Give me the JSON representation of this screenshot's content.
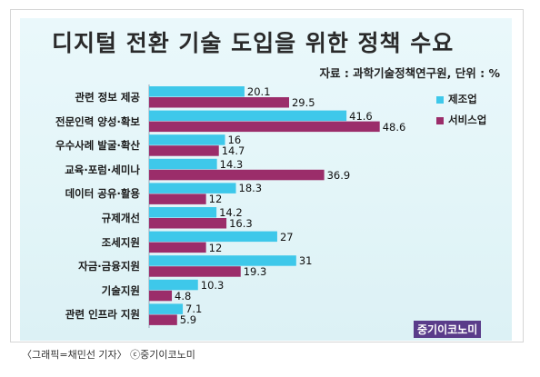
{
  "title": "디지털 전환 기술 도입을 위한 정책 수요",
  "source": "자료 : 과학기술정책연구원, 단위 : %",
  "caption": "〈그래픽=채민선 기자〉  ⓒ중기이코노미",
  "watermark": "중기이코노미",
  "colors": {
    "manufacturing": "#3ec8ea",
    "service": "#9b2d6a",
    "background": "#e3f5f8"
  },
  "chart_data": {
    "type": "bar",
    "orientation": "horizontal",
    "title": "디지털 전환 기술 도입을 위한 정책 수요",
    "unit": "%",
    "xlim": [
      0,
      50
    ],
    "grid": false,
    "legend_position": "right",
    "categories": [
      "관련 정보 제공",
      "전문인력 양성·확보",
      "우수사례 발굴·확산",
      "교육·포럼·세미나",
      "데이터 공유·활용",
      "규제개선",
      "조세지원",
      "자금·금융지원",
      "기술지원",
      "관련 인프라 지원"
    ],
    "series": [
      {
        "name": "제조업",
        "values": [
          20.1,
          41.6,
          16,
          14.3,
          18.3,
          14.2,
          27,
          31,
          10.3,
          7.1
        ]
      },
      {
        "name": "서비스업",
        "values": [
          29.5,
          48.6,
          14.7,
          36.9,
          12,
          16.3,
          12,
          19.3,
          4.8,
          5.9
        ]
      }
    ]
  }
}
